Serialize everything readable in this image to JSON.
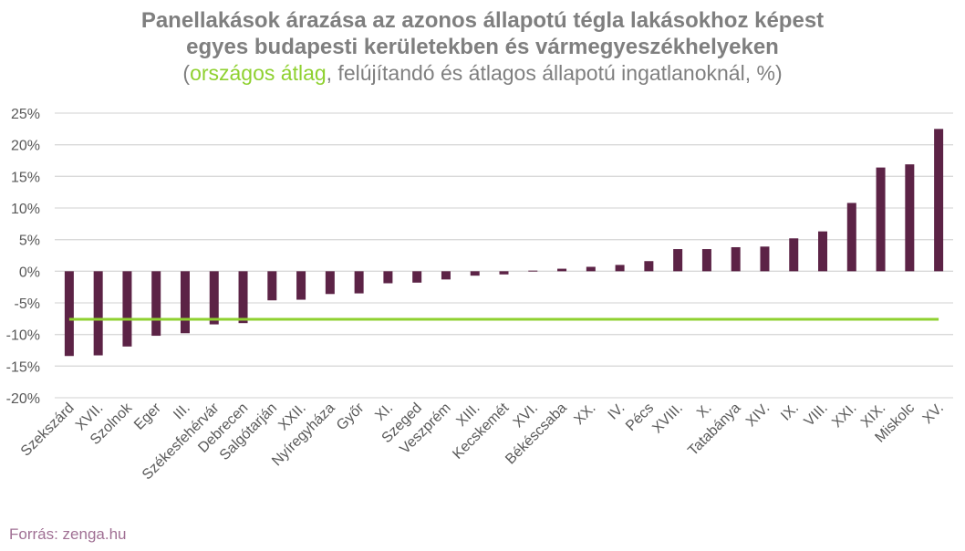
{
  "title_line1": "Panellakások árazása az azonos állapotú tégla lakásokhoz képest",
  "title_line2": "egyes budapesti kerületekben és vármegyeszékhelyeken",
  "subtitle_open": "(",
  "subtitle_highlight": "országos átlag",
  "subtitle_rest": ", felújítandó és átlagos állapotú ingatlanoknál, %)",
  "source": "Forrás: zenga.hu",
  "colors": {
    "bar": "#5c2346",
    "average_line": "#8fd130",
    "title": "#7f7f7f",
    "source": "#a07094"
  },
  "chart_data": {
    "type": "bar",
    "categories": [
      "Szekszárd",
      "XVII.",
      "Szolnok",
      "Eger",
      "III.",
      "Székesfehérvár",
      "Debrecen",
      "Salgótarján",
      "XXII.",
      "Nyíregyháza",
      "Győr",
      "XI.",
      "Szeged",
      "Veszprém",
      "XIII.",
      "Kecskemét",
      "XVI.",
      "Békéscsaba",
      "XX.",
      "IV.",
      "Pécs",
      "XVIII.",
      "X.",
      "Tatabánya",
      "XIV.",
      "IX.",
      "VIII.",
      "XXI.",
      "XIX.",
      "Miskolc",
      "XV."
    ],
    "values": [
      -13.4,
      -13.3,
      -11.9,
      -10.2,
      -9.8,
      -8.4,
      -8.2,
      -4.6,
      -4.5,
      -3.6,
      -3.5,
      -1.9,
      -1.8,
      -1.3,
      -0.7,
      -0.5,
      0.1,
      0.4,
      0.7,
      1.0,
      1.6,
      3.5,
      3.5,
      3.8,
      3.9,
      5.2,
      6.3,
      10.8,
      16.4,
      16.9,
      22.5
    ],
    "average": -7.6,
    "ylim": [
      -20,
      25
    ],
    "yticks": [
      25,
      20,
      15,
      10,
      5,
      0,
      -5,
      -10,
      -15,
      -20
    ],
    "ytick_labels": [
      "25%",
      "20%",
      "15%",
      "10%",
      "5%",
      "0%",
      "-5%",
      "-10%",
      "-15%",
      "-20%"
    ],
    "grid": true
  }
}
